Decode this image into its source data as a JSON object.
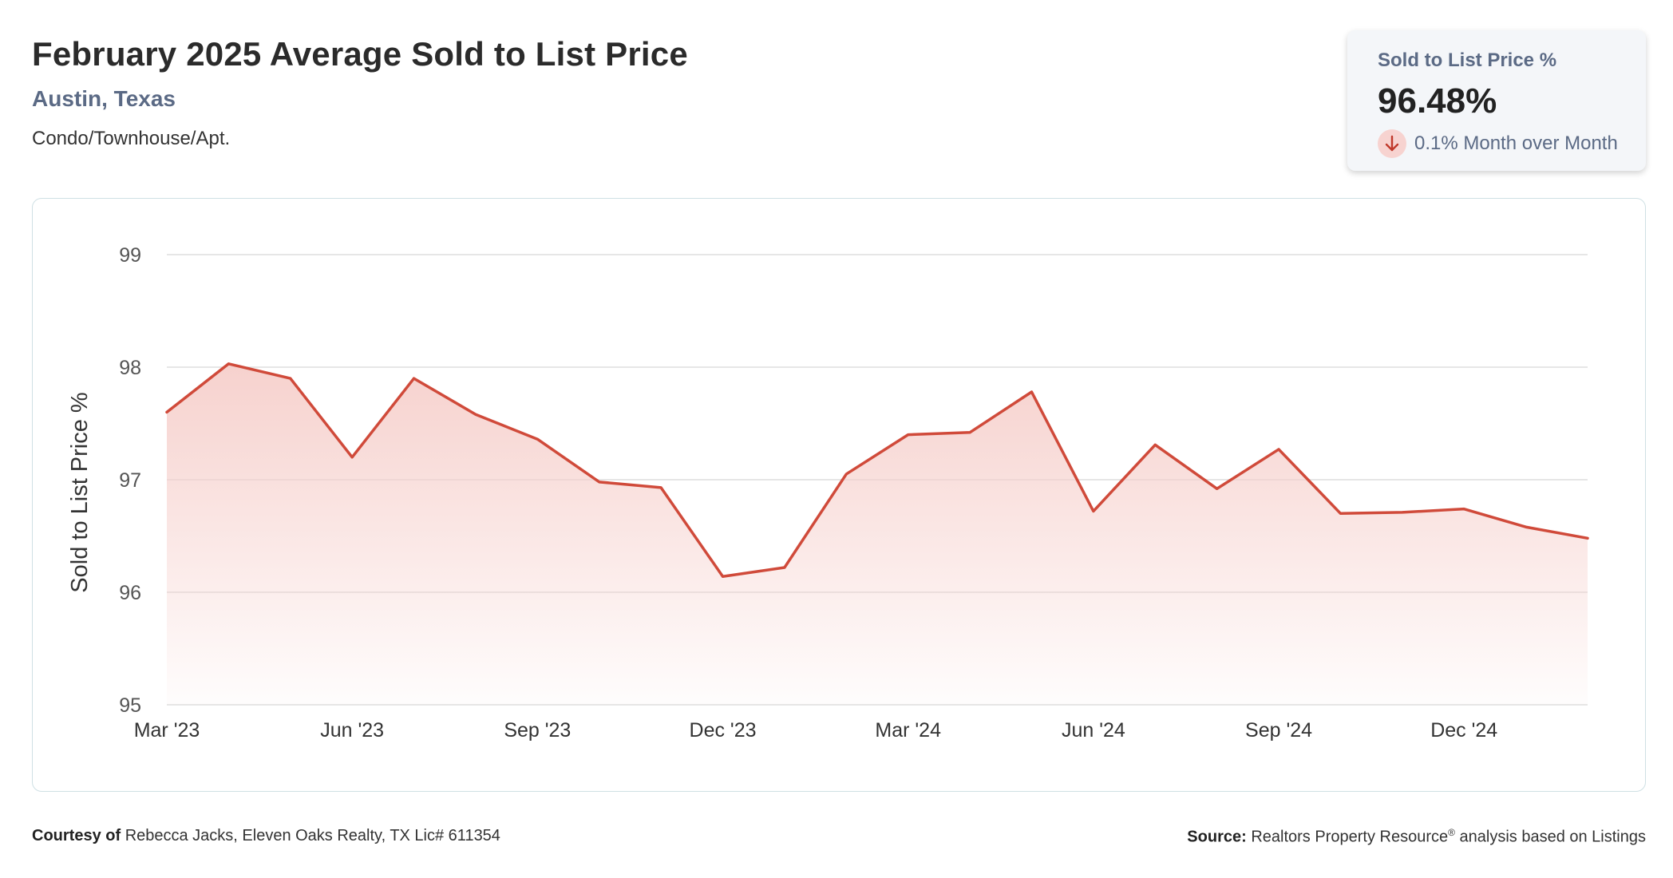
{
  "header": {
    "title": "February 2025 Average Sold to List Price",
    "location": "Austin, Texas",
    "property_type": "Condo/Townhouse/Apt."
  },
  "stat_card": {
    "label": "Sold to List Price %",
    "value": "96.48%",
    "change_text": "0.1% Month over Month",
    "change_direction": "down",
    "change_icon": "arrow-down-icon"
  },
  "footer": {
    "courtesy_label": "Courtesy of",
    "courtesy_text": "Rebecca Jacks, Eleven Oaks Realty, TX Lic# 611354",
    "source_label": "Source:",
    "source_text_a": "Realtors Property Resource",
    "source_sup": "®",
    "source_text_b": "analysis based on Listings"
  },
  "colors": {
    "line": "#d04a3a",
    "fill_top": "#f6cfcb",
    "grid": "#dedede",
    "accent_text": "#5b6a85"
  },
  "chart_data": {
    "type": "area",
    "ylabel": "Sold to List Price %",
    "ylim": [
      95,
      99
    ],
    "yticks": [
      95,
      96,
      97,
      98,
      99
    ],
    "grid": true,
    "x_tick_labels": [
      "Mar '23",
      "Jun '23",
      "Sep '23",
      "Dec '23",
      "Mar '24",
      "Jun '24",
      "Sep '24",
      "Dec '24"
    ],
    "x": [
      "2023-03",
      "2023-04",
      "2023-05",
      "2023-06",
      "2023-07",
      "2023-08",
      "2023-09",
      "2023-10",
      "2023-11",
      "2023-12",
      "2024-01",
      "2024-02",
      "2024-03",
      "2024-04",
      "2024-05",
      "2024-06",
      "2024-07",
      "2024-08",
      "2024-09",
      "2024-10",
      "2024-11",
      "2024-12",
      "2025-01",
      "2025-02"
    ],
    "values": [
      97.6,
      98.03,
      97.9,
      97.2,
      97.9,
      97.58,
      97.36,
      96.98,
      96.93,
      96.14,
      96.22,
      97.05,
      97.4,
      97.42,
      97.78,
      96.72,
      97.31,
      96.92,
      97.27,
      96.7,
      96.71,
      96.74,
      96.58,
      96.48
    ]
  }
}
